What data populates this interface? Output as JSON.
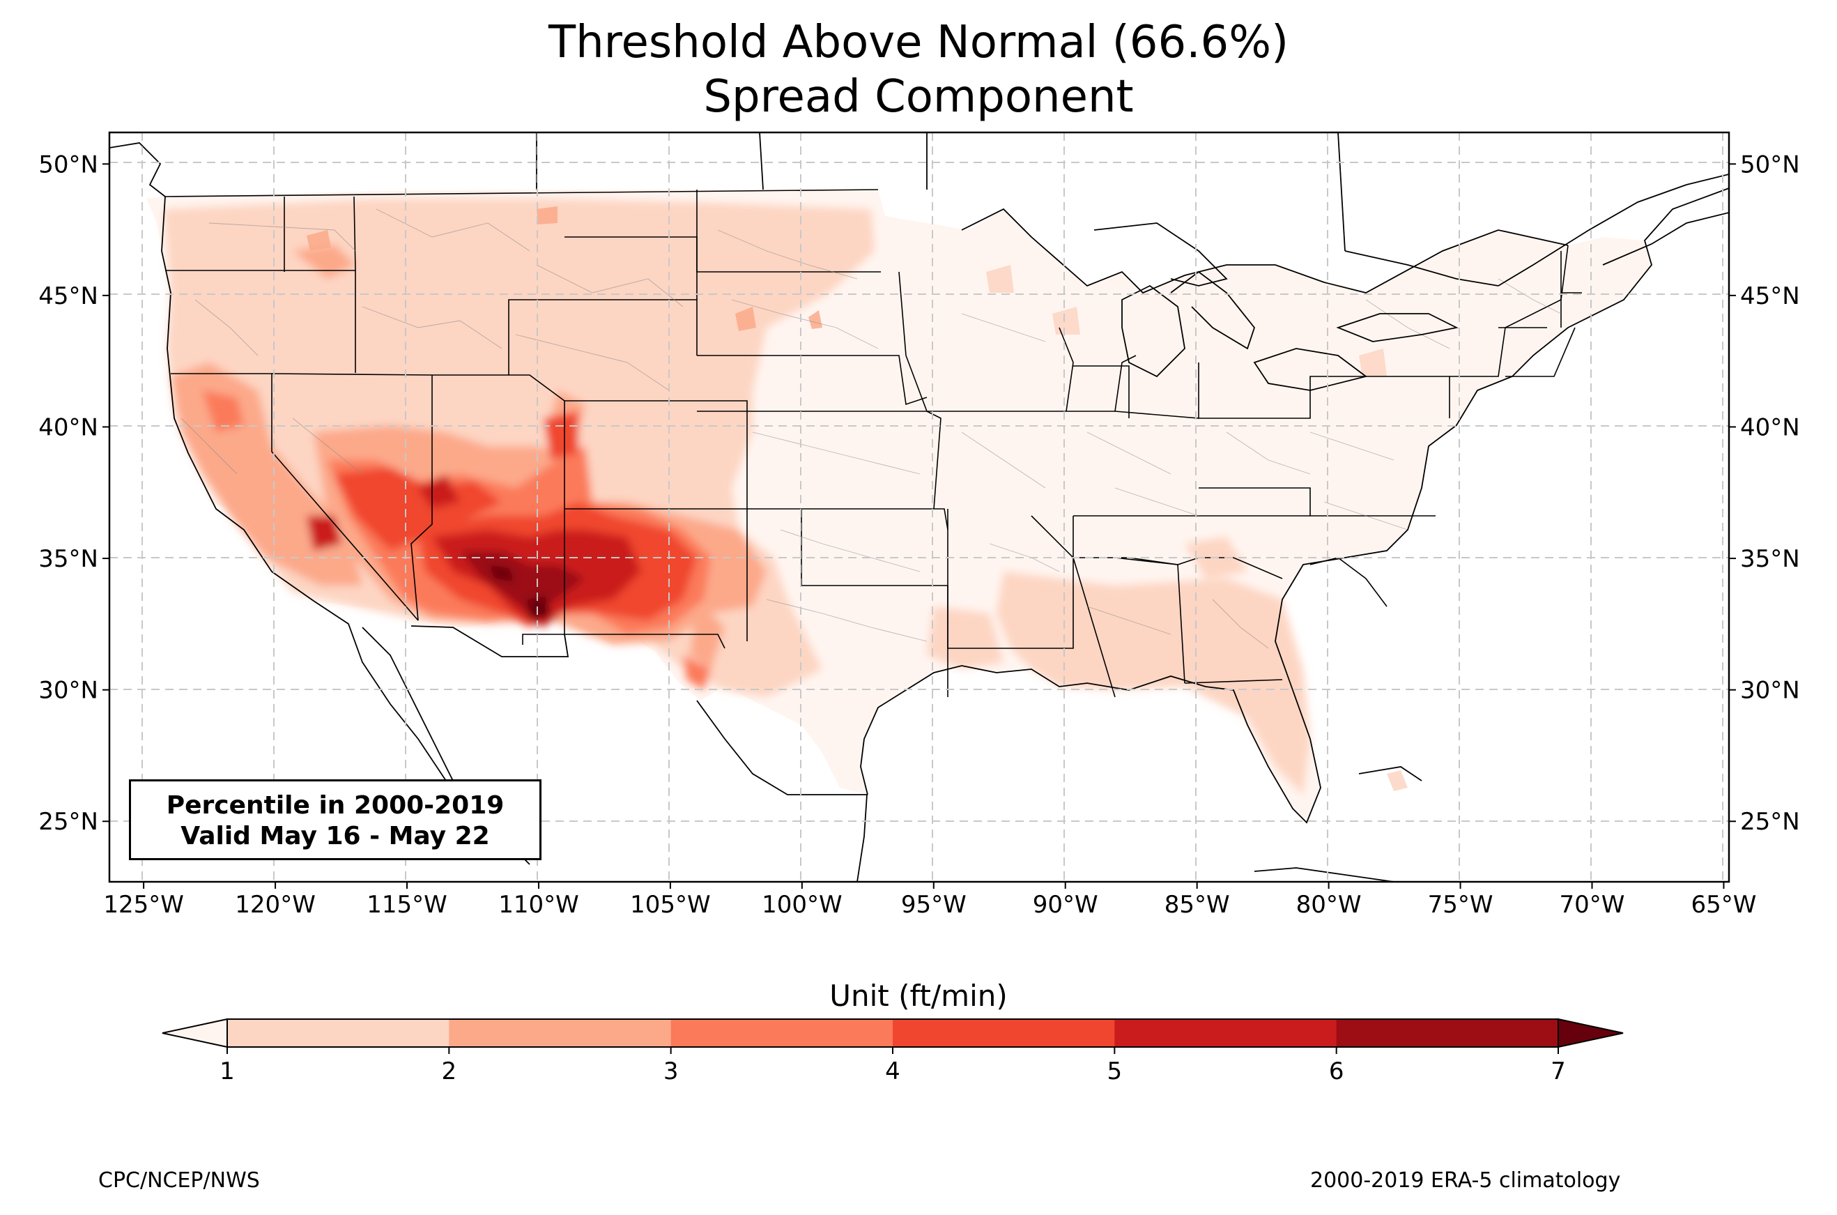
{
  "title": {
    "line1": "Threshold Above Normal (66.6%)",
    "line2": "Spread Component"
  },
  "map": {
    "lon_range": [
      -126.3,
      -64.8
    ],
    "lat_range": [
      22.7,
      51.2
    ],
    "lon_ticks": [
      -125,
      -120,
      -115,
      -110,
      -105,
      -100,
      -95,
      -90,
      -85,
      -80,
      -75,
      -70,
      -65
    ],
    "lon_tick_labels": [
      "125°W",
      "120°W",
      "115°W",
      "110°W",
      "105°W",
      "100°W",
      "95°W",
      "90°W",
      "85°W",
      "80°W",
      "75°W",
      "70°W",
      "65°W"
    ],
    "lat_ticks": [
      50,
      45,
      40,
      35,
      30,
      25
    ],
    "lat_tick_labels": [
      "50°N",
      "45°N",
      "40°N",
      "35°N",
      "30°N",
      "25°N"
    ],
    "grid": "dashed"
  },
  "info_box": {
    "line1": "Percentile in 2000-2019",
    "line2": "Valid May 16 - May 22"
  },
  "colorbar": {
    "label": "Unit (ft/min)",
    "levels": [
      1,
      2,
      3,
      4,
      5,
      6,
      7
    ],
    "tick_labels": [
      "1",
      "2",
      "3",
      "4",
      "5",
      "6",
      "7"
    ],
    "colors": [
      "#fff5f0",
      "#fdd5c3",
      "#fca98a",
      "#fb7a5a",
      "#f0462f",
      "#cb1c1d",
      "#9c0d14",
      "#67000d"
    ],
    "extend": "both"
  },
  "footer": {
    "left": "CPC/NCEP/NWS",
    "right": "2000-2019 ERA-5 climatology"
  }
}
